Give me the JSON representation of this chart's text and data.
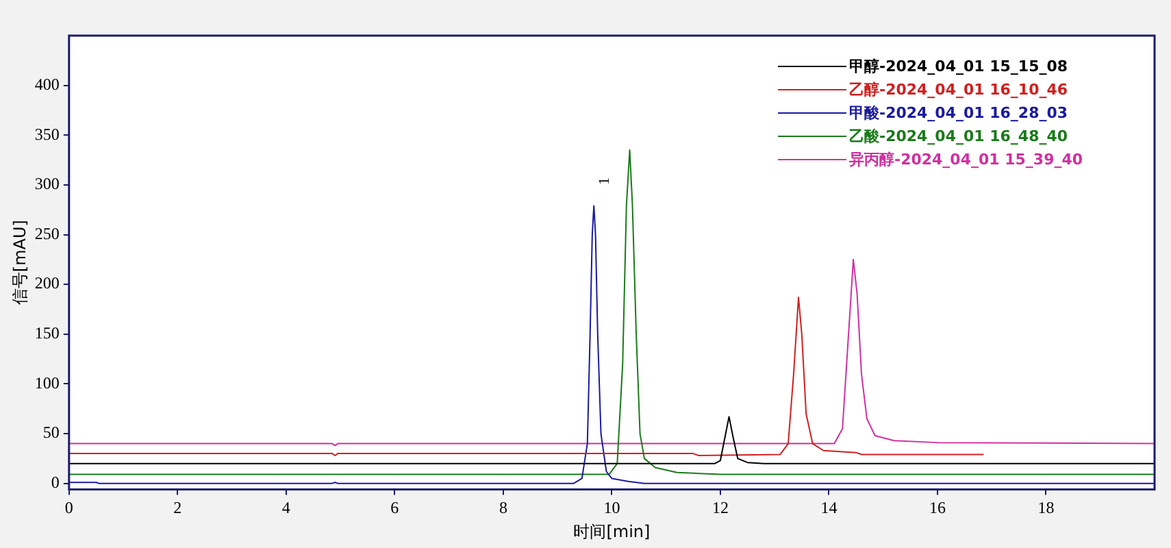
{
  "chart_data": {
    "type": "line",
    "xlabel": "时间[min]",
    "ylabel": "信号[mAU]",
    "xlim": [
      0,
      20
    ],
    "xticks": [
      0,
      2,
      4,
      6,
      8,
      10,
      12,
      14,
      16,
      18
    ],
    "ylim": [
      -6,
      450
    ],
    "yticks": [
      0,
      50,
      100,
      150,
      200,
      250,
      300,
      350,
      400
    ],
    "grid": false,
    "legend": "top right",
    "marker": "none",
    "line_style": "solid",
    "annotations": [
      {
        "text": "1",
        "x": 9.67,
        "y": 279
      }
    ],
    "series": [
      {
        "name": "甲醇-2024_04_01 15_15_08",
        "color": "#000000",
        "x": [
          0,
          11.9,
          12.0,
          12.08,
          12.16,
          12.24,
          12.32,
          12.5,
          12.8,
          20
        ],
        "values": [
          20,
          20,
          23,
          45,
          67,
          45,
          25,
          21,
          20,
          20
        ]
      },
      {
        "name": "乙醇-2024_04_01 16_10_46",
        "color": "#d02020",
        "x": [
          0,
          4.85,
          4.9,
          4.95,
          11.5,
          11.6,
          13.1,
          13.25,
          13.35,
          13.44,
          13.5,
          13.58,
          13.7,
          13.9,
          14.5,
          14.6,
          16.85
        ],
        "values": [
          30,
          30,
          28,
          30,
          30,
          28,
          29,
          40,
          110,
          187,
          150,
          70,
          40,
          33,
          31,
          29,
          29
        ]
      },
      {
        "name": "甲酸-2024_04_01 16_28_03",
        "color": "#1a1aa0",
        "x": [
          0,
          0.5,
          0.55,
          4.85,
          4.9,
          4.95,
          9.3,
          9.45,
          9.55,
          9.6,
          9.64,
          9.67,
          9.7,
          9.74,
          9.8,
          9.9,
          10.0,
          10.3,
          10.6,
          20
        ],
        "values": [
          1,
          1,
          0,
          0,
          1,
          0,
          0,
          5,
          40,
          150,
          250,
          279,
          250,
          150,
          50,
          12,
          5,
          2,
          0,
          0
        ]
      },
      {
        "name": "乙酸-2024_04_01 16_48_40",
        "color": "#1a7a1a",
        "x": [
          0,
          9.95,
          10.1,
          10.2,
          10.27,
          10.33,
          10.38,
          10.45,
          10.52,
          10.6,
          10.8,
          11.2,
          12,
          20
        ],
        "values": [
          9,
          9,
          20,
          120,
          280,
          335,
          280,
          150,
          50,
          25,
          16,
          11,
          9,
          9
        ]
      },
      {
        "name": "异丙醇-2024_04_01 15_39_40",
        "color": "#d030a0",
        "x": [
          0,
          4.85,
          4.9,
          4.95,
          14.1,
          14.25,
          14.35,
          14.45,
          14.52,
          14.6,
          14.7,
          14.85,
          15.2,
          16,
          20
        ],
        "values": [
          40,
          40,
          38,
          40,
          40,
          55,
          140,
          225,
          190,
          110,
          65,
          48,
          43,
          41,
          40
        ]
      }
    ]
  }
}
